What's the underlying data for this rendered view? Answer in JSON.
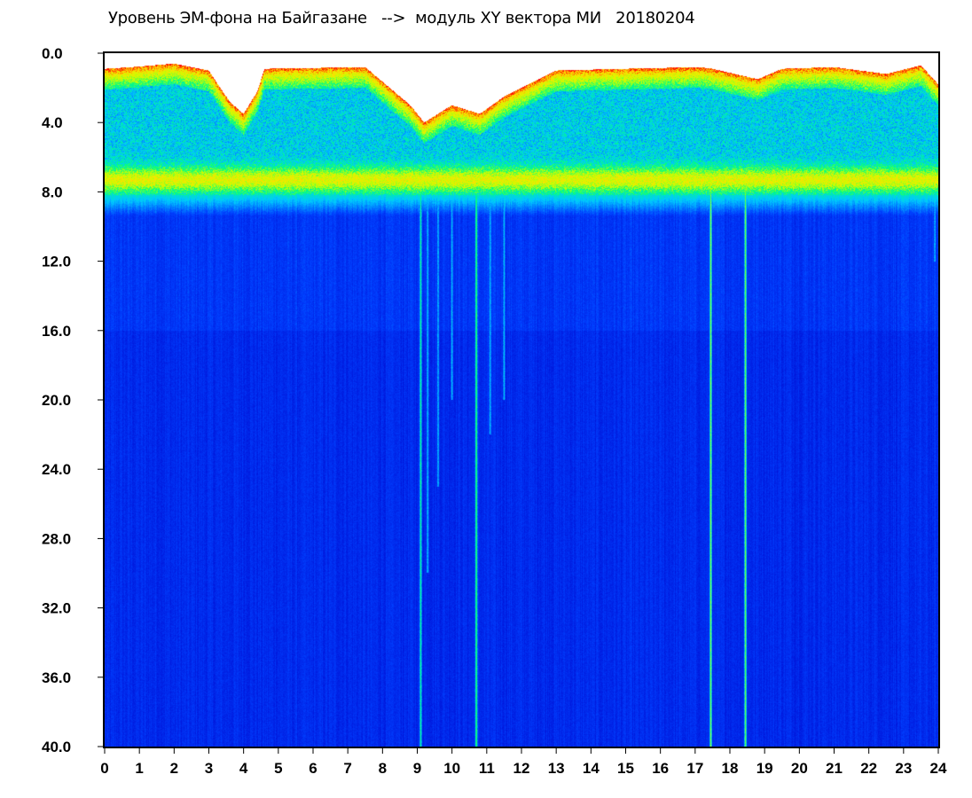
{
  "title": "Уровень ЭМ-фона на Байгазане   -->  модуль XY вектора МИ   20180204",
  "chart_data": {
    "type": "heatmap",
    "title": "Уровень ЭМ-фона на Байгазане   -->  модуль XY вектора МИ   20180204",
    "xlabel": "",
    "ylabel": "",
    "xlim": [
      0,
      24
    ],
    "ylim": [
      0,
      40
    ],
    "y_inverted": true,
    "x_ticks": [
      0,
      1,
      2,
      3,
      4,
      5,
      6,
      7,
      8,
      9,
      10,
      11,
      12,
      13,
      14,
      15,
      16,
      17,
      18,
      19,
      20,
      21,
      22,
      23,
      24
    ],
    "x_tick_labels": [
      "0",
      "1",
      "2",
      "3",
      "4",
      "5",
      "6",
      "7",
      "8",
      "9",
      "10",
      "11",
      "12",
      "13",
      "14",
      "15",
      "16",
      "17",
      "18",
      "19",
      "20",
      "21",
      "22",
      "23",
      "24"
    ],
    "y_ticks": [
      0,
      4,
      8,
      12,
      16,
      20,
      24,
      28,
      32,
      36,
      40
    ],
    "y_tick_labels": [
      "0.0",
      "4.0",
      "8.0",
      "12.0",
      "16.0",
      "20.0",
      "24.0",
      "28.0",
      "32.0",
      "36.0",
      "40.0"
    ],
    "colormap": [
      "#0000c8",
      "#0040ff",
      "#00c8ff",
      "#00ff80",
      "#c8ff00",
      "#ffe000",
      "#ff0000"
    ],
    "background_color": "#0018d8",
    "band_top_edge": [
      {
        "x": 0.0,
        "y": 0.9
      },
      {
        "x": 0.8,
        "y": 0.8
      },
      {
        "x": 2.0,
        "y": 0.6
      },
      {
        "x": 3.0,
        "y": 1.0
      },
      {
        "x": 3.6,
        "y": 2.8
      },
      {
        "x": 4.0,
        "y": 3.5
      },
      {
        "x": 4.4,
        "y": 2.2
      },
      {
        "x": 4.6,
        "y": 0.9
      },
      {
        "x": 7.5,
        "y": 0.8
      },
      {
        "x": 8.8,
        "y": 3.0
      },
      {
        "x": 9.2,
        "y": 4.0
      },
      {
        "x": 10.0,
        "y": 3.0
      },
      {
        "x": 10.8,
        "y": 3.5
      },
      {
        "x": 11.5,
        "y": 2.5
      },
      {
        "x": 12.5,
        "y": 1.5
      },
      {
        "x": 13.0,
        "y": 1.0
      },
      {
        "x": 15.0,
        "y": 0.9
      },
      {
        "x": 17.1,
        "y": 0.8
      },
      {
        "x": 17.5,
        "y": 0.9
      },
      {
        "x": 18.8,
        "y": 1.5
      },
      {
        "x": 19.5,
        "y": 0.9
      },
      {
        "x": 21.0,
        "y": 0.8
      },
      {
        "x": 22.5,
        "y": 1.2
      },
      {
        "x": 23.5,
        "y": 0.7
      },
      {
        "x": 24.0,
        "y": 1.8
      }
    ],
    "band_bottom_y": 8.2,
    "spikes": [
      {
        "x": 9.1,
        "y_bottom": 40.0,
        "strength": "medium"
      },
      {
        "x": 9.3,
        "y_bottom": 30.0,
        "strength": "weak"
      },
      {
        "x": 9.6,
        "y_bottom": 25.0,
        "strength": "weak"
      },
      {
        "x": 10.0,
        "y_bottom": 20.0,
        "strength": "weak"
      },
      {
        "x": 10.7,
        "y_bottom": 40.0,
        "strength": "strong"
      },
      {
        "x": 11.1,
        "y_bottom": 22.0,
        "strength": "weak"
      },
      {
        "x": 11.5,
        "y_bottom": 20.0,
        "strength": "weak"
      },
      {
        "x": 17.45,
        "y_bottom": 40.0,
        "strength": "strong"
      },
      {
        "x": 18.45,
        "y_bottom": 40.0,
        "strength": "strong"
      },
      {
        "x": 23.9,
        "y_bottom": 12.0,
        "strength": "weak"
      }
    ],
    "grid": false,
    "legend": "none"
  }
}
